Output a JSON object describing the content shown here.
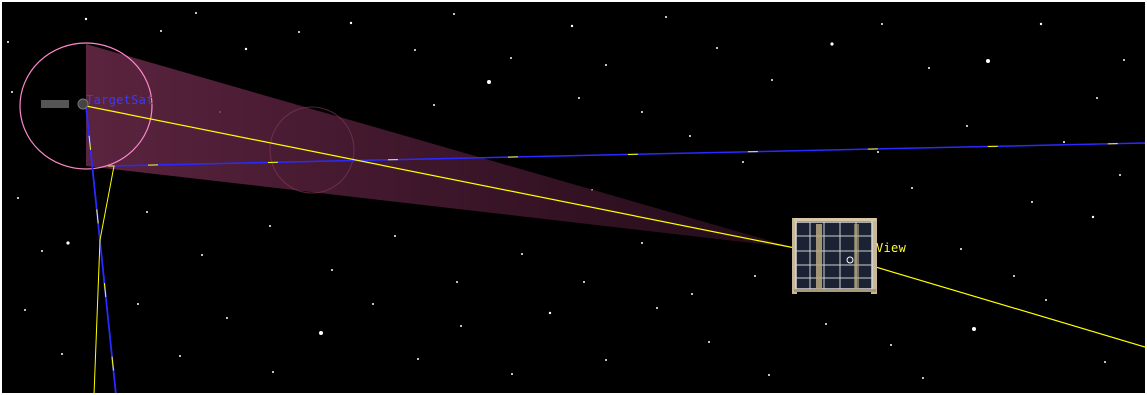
{
  "view": {
    "background_color": "#000000",
    "frame_color": "#ffffff"
  },
  "target": {
    "label": "TargetSat",
    "label_color": "#3a3aff",
    "sensor_circle_color": "#ff88cc",
    "sensor_cone_color": "#6b2a4a"
  },
  "observer": {
    "label": "View",
    "label_color": "#ffff33",
    "model": "cubesat"
  },
  "lines": {
    "orbit_color": "#2a2aff",
    "los_color": "#ffff00"
  }
}
